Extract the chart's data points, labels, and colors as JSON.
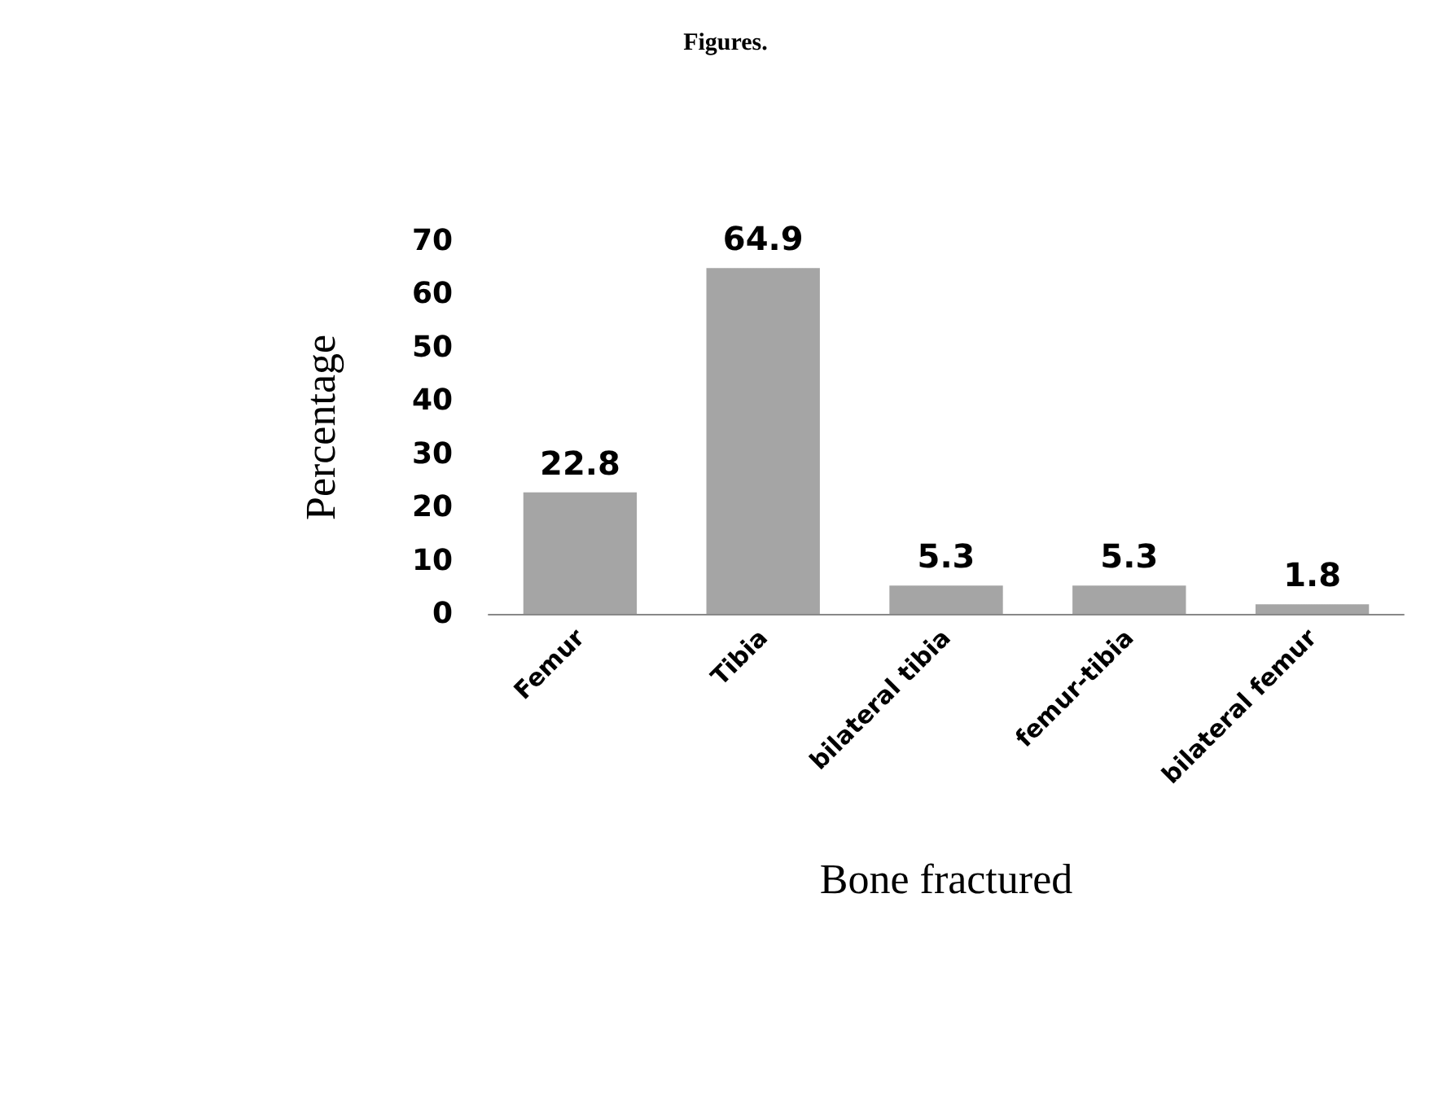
{
  "chart_data": {
    "type": "bar",
    "title": "Figures.",
    "xlabel": "Bone fractured",
    "ylabel": "Percentage",
    "categories": [
      "Femur",
      "Tibia",
      "bilateral tibia",
      "femur-tibia",
      "bilateral femur"
    ],
    "values": [
      22.8,
      64.9,
      5.3,
      5.3,
      1.8
    ],
    "color": "#a5a5a5",
    "ylim": [
      0,
      70
    ],
    "yticks": [
      0,
      10,
      20,
      30,
      40,
      50,
      60,
      70
    ],
    "grid": false,
    "data_labels": true
  }
}
